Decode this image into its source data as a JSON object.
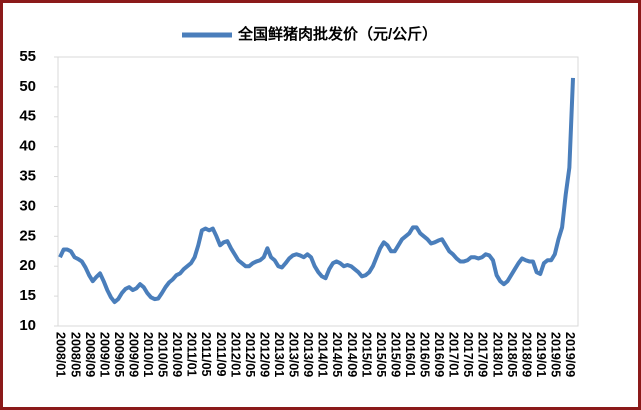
{
  "chart_data": {
    "type": "line",
    "categories": [
      "2008/01",
      null,
      null,
      null,
      "2008/05",
      null,
      null,
      null,
      "2008/09",
      null,
      null,
      null,
      "2009/01",
      null,
      null,
      null,
      "2009/05",
      null,
      null,
      null,
      "2009/09",
      null,
      null,
      null,
      "2010/01",
      null,
      null,
      null,
      "2010/05",
      null,
      null,
      null,
      "2010/09",
      null,
      null,
      null,
      "2011/01",
      null,
      null,
      null,
      "2011/05",
      null,
      null,
      null,
      "2011/09",
      null,
      null,
      null,
      "2012/01",
      null,
      null,
      null,
      "2012/05",
      null,
      null,
      null,
      "2012/09",
      null,
      null,
      null,
      "2013/01",
      null,
      null,
      null,
      "2013/05",
      null,
      null,
      null,
      "2013/09",
      null,
      null,
      null,
      "2014/01",
      null,
      null,
      null,
      "2014/05",
      null,
      null,
      null,
      "2014/09",
      null,
      null,
      null,
      "2015/01",
      null,
      null,
      null,
      "2015/05",
      null,
      null,
      null,
      "2015/09",
      null,
      null,
      null,
      "2016/01",
      null,
      null,
      null,
      "2016/05",
      null,
      null,
      null,
      "2016/09",
      null,
      null,
      null,
      "2017/01",
      null,
      null,
      null,
      "2017/05",
      null,
      null,
      null,
      "2017/09",
      null,
      null,
      null,
      "2018/01",
      null,
      null,
      null,
      "2018/05",
      null,
      null,
      null,
      "2018/09",
      null,
      null,
      null,
      "2019/01",
      null,
      null,
      null,
      "2019/05",
      null,
      null,
      null,
      "2019/09",
      null
    ],
    "series": [
      {
        "name": "全国鲜猪肉批发价（元/公斤）",
        "color": "#4a7ebb",
        "values": [
          21.5,
          22.8,
          22.8,
          22.5,
          21.5,
          21.2,
          20.8,
          19.8,
          18.5,
          17.5,
          18.2,
          18.8,
          17.5,
          16.0,
          14.8,
          14.0,
          14.5,
          15.5,
          16.2,
          16.5,
          16.0,
          16.3,
          17.0,
          16.5,
          15.5,
          14.8,
          14.5,
          14.6,
          15.5,
          16.5,
          17.3,
          17.8,
          18.5,
          18.8,
          19.5,
          20.0,
          20.5,
          21.5,
          23.5,
          26.0,
          26.3,
          26.0,
          26.3,
          25.0,
          23.5,
          24.0,
          24.2,
          23.0,
          22.0,
          21.0,
          20.5,
          20.0,
          20.0,
          20.5,
          20.8,
          21.0,
          21.5,
          23.0,
          21.5,
          21.0,
          20.0,
          19.8,
          20.5,
          21.3,
          21.8,
          22.0,
          21.8,
          21.5,
          22.0,
          21.5,
          20.0,
          19.0,
          18.3,
          18.0,
          19.5,
          20.5,
          20.8,
          20.5,
          20.0,
          20.2,
          20.0,
          19.5,
          19.0,
          18.3,
          18.5,
          19.0,
          20.0,
          21.5,
          23.0,
          24.0,
          23.5,
          22.5,
          22.5,
          23.5,
          24.5,
          25.0,
          25.5,
          26.5,
          26.5,
          25.5,
          25.0,
          24.5,
          23.8,
          24.0,
          24.3,
          24.5,
          23.5,
          22.5,
          22.0,
          21.3,
          20.8,
          20.8,
          21.0,
          21.5,
          21.5,
          21.3,
          21.5,
          22.0,
          21.8,
          21.0,
          18.5,
          17.5,
          17.0,
          17.5,
          18.5,
          19.5,
          20.5,
          21.3,
          21.0,
          20.8,
          20.8,
          19.0,
          18.7,
          20.5,
          21.0,
          21.0,
          22.0,
          24.5,
          26.5,
          32.0,
          36.5,
          51.5
        ]
      }
    ],
    "ylim": [
      10,
      55
    ],
    "yticks": [
      10,
      15,
      20,
      25,
      30,
      35,
      40,
      45,
      50,
      55
    ],
    "legend": "top"
  }
}
